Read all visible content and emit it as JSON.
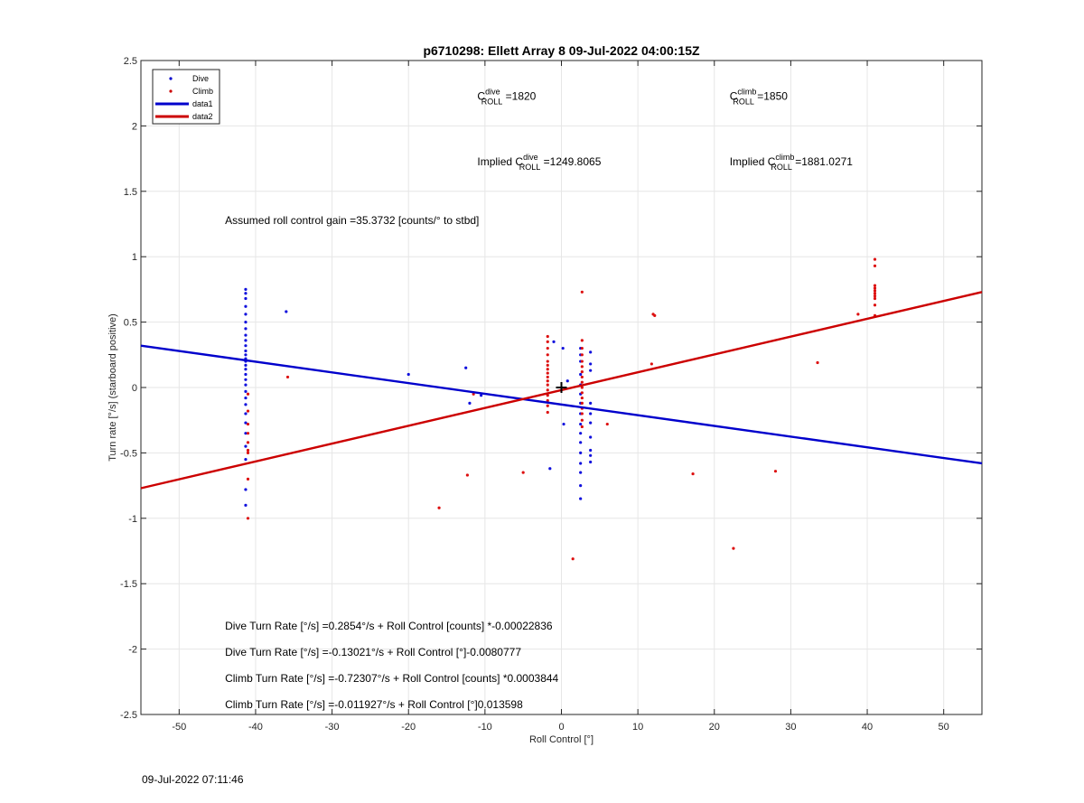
{
  "chart_data": {
    "type": "scatter",
    "title": "p6710298: Ellett Array 8 09-Jul-2022 04:00:15Z",
    "xlabel": "Roll Control [°]",
    "ylabel": "Turn rate [°/s] (starboard positive)",
    "xlim": [
      -55,
      55
    ],
    "ylim": [
      -2.5,
      2.5
    ],
    "xticks": [
      -50,
      -40,
      -30,
      -20,
      -10,
      0,
      10,
      20,
      30,
      40,
      50
    ],
    "yticks": [
      -2.5,
      -2,
      -1.5,
      -1,
      -0.5,
      0,
      0.5,
      1,
      1.5,
      2,
      2.5
    ],
    "xtick_labels": [
      "-50",
      "-40",
      "-30",
      "-20",
      "-10",
      "0",
      "10",
      "20",
      "30",
      "40",
      "50"
    ],
    "ytick_labels": [
      "-2.5",
      "-2",
      "-1.5",
      "-1",
      "-0.5",
      "0",
      "0.5",
      "1",
      "1.5",
      "2",
      "2.5"
    ],
    "grid": true,
    "legend_position": "top-left",
    "legend": [
      {
        "label": "Dive",
        "kind": "marker",
        "color": "#0000cc"
      },
      {
        "label": "Climb",
        "kind": "marker",
        "color": "#cc0000"
      },
      {
        "label": "data1",
        "kind": "line",
        "color": "#0000cc"
      },
      {
        "label": "data2",
        "kind": "line",
        "color": "#cc0000"
      }
    ],
    "series": [
      {
        "name": "Dive",
        "kind": "points",
        "color": "#1010dd",
        "points": [
          [
            -41.3,
            0.75
          ],
          [
            -41.3,
            0.72
          ],
          [
            -41.3,
            0.68
          ],
          [
            -41.3,
            0.62
          ],
          [
            -41.3,
            0.56
          ],
          [
            -41.3,
            0.5
          ],
          [
            -41.3,
            0.45
          ],
          [
            -41.3,
            0.4
          ],
          [
            -41.3,
            0.36
          ],
          [
            -41.3,
            0.32
          ],
          [
            -41.3,
            0.28
          ],
          [
            -41.3,
            0.25
          ],
          [
            -41.3,
            0.22
          ],
          [
            -41.3,
            0.2
          ],
          [
            -41.3,
            0.17
          ],
          [
            -41.3,
            0.14
          ],
          [
            -41.3,
            0.1
          ],
          [
            -41.3,
            0.06
          ],
          [
            -41.3,
            0.02
          ],
          [
            -41.3,
            -0.03
          ],
          [
            -41.3,
            -0.08
          ],
          [
            -41.3,
            -0.13
          ],
          [
            -41.3,
            -0.2
          ],
          [
            -41.3,
            -0.27
          ],
          [
            -41.3,
            -0.35
          ],
          [
            -41.3,
            -0.45
          ],
          [
            -41.3,
            -0.55
          ],
          [
            -41.3,
            -0.78
          ],
          [
            -41.3,
            -0.9
          ],
          [
            -36.0,
            0.58
          ],
          [
            -20.0,
            0.1
          ],
          [
            -12.5,
            0.15
          ],
          [
            -12.0,
            -0.12
          ],
          [
            -10.5,
            -0.06
          ],
          [
            -1.5,
            -0.62
          ],
          [
            -1.0,
            0.35
          ],
          [
            0.2,
            0.3
          ],
          [
            0.3,
            -0.28
          ],
          [
            0.8,
            0.05
          ],
          [
            2.5,
            0.3
          ],
          [
            2.5,
            0.25
          ],
          [
            2.5,
            0.2
          ],
          [
            2.5,
            0.1
          ],
          [
            2.5,
            0.02
          ],
          [
            2.5,
            -0.05
          ],
          [
            2.5,
            -0.12
          ],
          [
            2.5,
            -0.2
          ],
          [
            2.5,
            -0.28
          ],
          [
            2.5,
            -0.35
          ],
          [
            2.5,
            -0.42
          ],
          [
            2.5,
            -0.5
          ],
          [
            2.5,
            -0.58
          ],
          [
            2.5,
            -0.65
          ],
          [
            2.5,
            -0.75
          ],
          [
            2.5,
            -0.85
          ],
          [
            3.8,
            0.27
          ],
          [
            3.8,
            0.18
          ],
          [
            3.8,
            0.13
          ],
          [
            3.8,
            -0.12
          ],
          [
            3.8,
            -0.2
          ],
          [
            3.8,
            -0.27
          ],
          [
            3.8,
            -0.38
          ],
          [
            3.8,
            -0.48
          ],
          [
            3.8,
            -0.52
          ],
          [
            3.8,
            -0.57
          ]
        ]
      },
      {
        "name": "Climb",
        "kind": "points",
        "color": "#dd1010",
        "points": [
          [
            -41.0,
            -0.05
          ],
          [
            -41.0,
            -0.18
          ],
          [
            -41.0,
            -0.28
          ],
          [
            -41.0,
            -0.35
          ],
          [
            -41.0,
            -0.42
          ],
          [
            -41.0,
            -0.48
          ],
          [
            -41.0,
            -0.5
          ],
          [
            -41.0,
            -0.7
          ],
          [
            -41.0,
            -1.0
          ],
          [
            -35.8,
            0.08
          ],
          [
            -16.0,
            -0.92
          ],
          [
            -12.3,
            -0.67
          ],
          [
            -11.5,
            -0.05
          ],
          [
            -5.0,
            -0.65
          ],
          [
            -1.8,
            0.39
          ],
          [
            -1.8,
            0.35
          ],
          [
            -1.8,
            0.3
          ],
          [
            -1.8,
            0.25
          ],
          [
            -1.8,
            0.2
          ],
          [
            -1.8,
            0.17
          ],
          [
            -1.8,
            0.14
          ],
          [
            -1.8,
            0.11
          ],
          [
            -1.8,
            0.08
          ],
          [
            -1.8,
            0.05
          ],
          [
            -1.8,
            0.02
          ],
          [
            -1.8,
            -0.02
          ],
          [
            -1.8,
            -0.06
          ],
          [
            -1.8,
            -0.1
          ],
          [
            -1.8,
            -0.14
          ],
          [
            -1.8,
            -0.19
          ],
          [
            1.5,
            -1.31
          ],
          [
            2.7,
            0.73
          ],
          [
            2.7,
            0.36
          ],
          [
            2.7,
            0.3
          ],
          [
            2.7,
            0.25
          ],
          [
            2.7,
            0.2
          ],
          [
            2.7,
            0.16
          ],
          [
            2.7,
            0.12
          ],
          [
            2.7,
            0.08
          ],
          [
            2.7,
            0.04
          ],
          [
            2.7,
            0.0
          ],
          [
            2.7,
            -0.04
          ],
          [
            2.7,
            -0.08
          ],
          [
            2.7,
            -0.12
          ],
          [
            2.7,
            -0.16
          ],
          [
            2.7,
            -0.2
          ],
          [
            2.7,
            -0.25
          ],
          [
            2.7,
            -0.3
          ],
          [
            6.0,
            -0.28
          ],
          [
            11.8,
            0.18
          ],
          [
            12.0,
            0.56
          ],
          [
            12.2,
            0.55
          ],
          [
            17.2,
            -0.66
          ],
          [
            22.5,
            -1.23
          ],
          [
            28.0,
            -0.64
          ],
          [
            33.5,
            0.19
          ],
          [
            38.8,
            0.56
          ],
          [
            41.0,
            0.98
          ],
          [
            41.0,
            0.93
          ],
          [
            41.0,
            0.78
          ],
          [
            41.0,
            0.76
          ],
          [
            41.0,
            0.74
          ],
          [
            41.0,
            0.72
          ],
          [
            41.0,
            0.7
          ],
          [
            41.0,
            0.68
          ],
          [
            41.0,
            0.63
          ],
          [
            41.0,
            0.55
          ]
        ]
      },
      {
        "name": "data1",
        "kind": "line",
        "color": "#0000cc",
        "x": [
          -55,
          55
        ],
        "y": [
          0.32,
          -0.58
        ]
      },
      {
        "name": "data2",
        "kind": "line",
        "color": "#cc0000",
        "x": [
          -55,
          55
        ],
        "y": [
          -0.77,
          0.73
        ]
      }
    ],
    "marker": {
      "x": 0,
      "y": 0,
      "symbol": "+"
    },
    "annotations": [
      {
        "id": "c-dive",
        "prefix": "C",
        "sup": "dive",
        "sub": "ROLL",
        "suffix": " =1820",
        "x": -11,
        "y": 2.2
      },
      {
        "id": "c-climb",
        "prefix": "C",
        "sup": "climb",
        "sub": "ROLL",
        "suffix": " =1850",
        "x": 22,
        "y": 2.2
      },
      {
        "id": "implied-dive",
        "prefix": "Implied C",
        "sup": "dive",
        "sub": "ROLL",
        "suffix": " =1249.8065",
        "x": -11,
        "y": 1.7
      },
      {
        "id": "implied-climb",
        "prefix": "Implied C",
        "sup": "climb",
        "sub": "ROLL",
        "suffix": " =1881.0271",
        "x": 22,
        "y": 1.7
      },
      {
        "id": "gain",
        "text": "Assumed roll control gain =35.3732 [counts/° to stbd]",
        "x": -44,
        "y": 1.25
      },
      {
        "id": "dive-counts",
        "text": "Dive Turn Rate [°/s] =0.2854°/s + Roll Control [counts] *-0.00022836",
        "x": -44,
        "y": -1.85
      },
      {
        "id": "dive-deg",
        "text": "Dive Turn Rate [°/s] =-0.13021°/s + Roll Control [°]-0.0080777",
        "x": -44,
        "y": -2.05
      },
      {
        "id": "climb-counts",
        "text": "Climb Turn Rate [°/s] =-0.72307°/s + Roll Control [counts] *0.0003844",
        "x": -44,
        "y": -2.25
      },
      {
        "id": "climb-deg",
        "text": "Climb Turn Rate [°/s] =-0.011927°/s + Roll Control [°]0.013598",
        "x": -44,
        "y": -2.45
      }
    ]
  },
  "footer": {
    "timestamp": "09-Jul-2022 07:11:46"
  }
}
